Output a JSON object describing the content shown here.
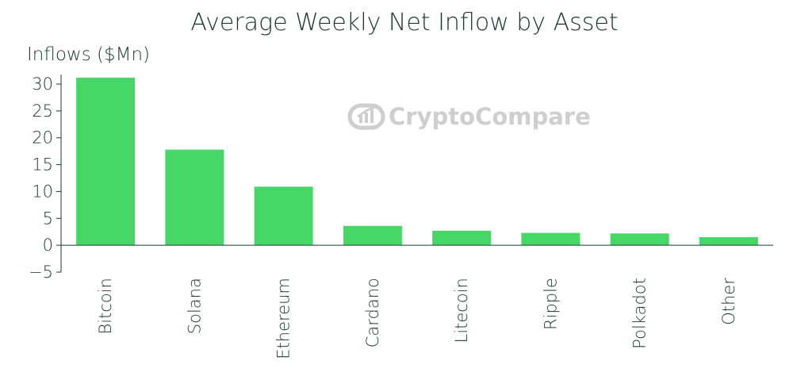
{
  "chart_data": {
    "type": "bar",
    "title": "Average Weekly Net Inflow by Asset",
    "ylabel": "Inflows ($Mn)",
    "xlabel": "",
    "ylim": [
      -5,
      30
    ],
    "yticks": [
      -5,
      0,
      5,
      10,
      15,
      20,
      25,
      30
    ],
    "categories": [
      "Bitcoin",
      "Solana",
      "Ethereum",
      "Cardano",
      "Litecoin",
      "Ripple",
      "Polkadot",
      "Other"
    ],
    "values": [
      31.2,
      17.8,
      10.9,
      3.6,
      2.7,
      2.3,
      2.2,
      1.5
    ],
    "bar_color": "#46d767",
    "grid": false,
    "legend": "none"
  },
  "watermark": {
    "text": "CryptoCompare",
    "icon": "cryptocompare-logo-icon"
  }
}
